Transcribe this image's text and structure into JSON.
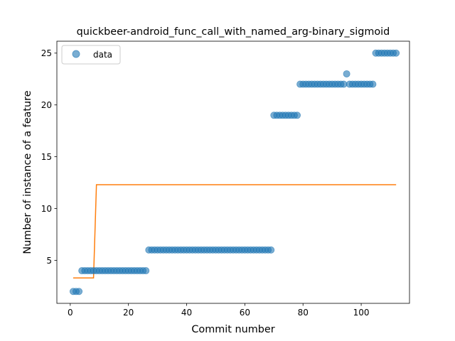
{
  "chart_data": {
    "type": "scatter",
    "title": "quickbeer-android_func_call_with_named_arg-binary_sigmoid",
    "xlabel": "Commit number",
    "ylabel": "Number of instance of a feature",
    "xlim": [
      -4.6,
      116.6
    ],
    "ylim": [
      0.85,
      26.15
    ],
    "xticks": [
      0,
      20,
      40,
      60,
      80,
      100
    ],
    "yticks": [
      5,
      10,
      15,
      20,
      25
    ],
    "grid": false,
    "legend": {
      "position": "top-left",
      "entries": [
        "data"
      ]
    },
    "colors": {
      "data": "#1f77b4",
      "fit": "#ff7f0e"
    },
    "series": [
      {
        "name": "data",
        "kind": "scatter",
        "points": [
          [
            1,
            2
          ],
          [
            2,
            2
          ],
          [
            3,
            2
          ],
          [
            4,
            4
          ],
          [
            5,
            4
          ],
          [
            6,
            4
          ],
          [
            7,
            4
          ],
          [
            8,
            4
          ],
          [
            9,
            4
          ],
          [
            10,
            4
          ],
          [
            11,
            4
          ],
          [
            12,
            4
          ],
          [
            13,
            4
          ],
          [
            14,
            4
          ],
          [
            15,
            4
          ],
          [
            16,
            4
          ],
          [
            17,
            4
          ],
          [
            18,
            4
          ],
          [
            19,
            4
          ],
          [
            20,
            4
          ],
          [
            21,
            4
          ],
          [
            22,
            4
          ],
          [
            23,
            4
          ],
          [
            24,
            4
          ],
          [
            25,
            4
          ],
          [
            26,
            4
          ],
          [
            27,
            6
          ],
          [
            28,
            6
          ],
          [
            29,
            6
          ],
          [
            30,
            6
          ],
          [
            31,
            6
          ],
          [
            32,
            6
          ],
          [
            33,
            6
          ],
          [
            34,
            6
          ],
          [
            35,
            6
          ],
          [
            36,
            6
          ],
          [
            37,
            6
          ],
          [
            38,
            6
          ],
          [
            39,
            6
          ],
          [
            40,
            6
          ],
          [
            41,
            6
          ],
          [
            42,
            6
          ],
          [
            43,
            6
          ],
          [
            44,
            6
          ],
          [
            45,
            6
          ],
          [
            46,
            6
          ],
          [
            47,
            6
          ],
          [
            48,
            6
          ],
          [
            49,
            6
          ],
          [
            50,
            6
          ],
          [
            51,
            6
          ],
          [
            52,
            6
          ],
          [
            53,
            6
          ],
          [
            54,
            6
          ],
          [
            55,
            6
          ],
          [
            56,
            6
          ],
          [
            57,
            6
          ],
          [
            58,
            6
          ],
          [
            59,
            6
          ],
          [
            60,
            6
          ],
          [
            61,
            6
          ],
          [
            62,
            6
          ],
          [
            63,
            6
          ],
          [
            64,
            6
          ],
          [
            65,
            6
          ],
          [
            66,
            6
          ],
          [
            67,
            6
          ],
          [
            68,
            6
          ],
          [
            69,
            6
          ],
          [
            70,
            19
          ],
          [
            71,
            19
          ],
          [
            72,
            19
          ],
          [
            73,
            19
          ],
          [
            74,
            19
          ],
          [
            75,
            19
          ],
          [
            76,
            19
          ],
          [
            77,
            19
          ],
          [
            78,
            19
          ],
          [
            79,
            22
          ],
          [
            80,
            22
          ],
          [
            81,
            22
          ],
          [
            82,
            22
          ],
          [
            83,
            22
          ],
          [
            84,
            22
          ],
          [
            85,
            22
          ],
          [
            86,
            22
          ],
          [
            87,
            22
          ],
          [
            88,
            22
          ],
          [
            89,
            22
          ],
          [
            90,
            22
          ],
          [
            91,
            22
          ],
          [
            92,
            22
          ],
          [
            93,
            22
          ],
          [
            94,
            22
          ],
          [
            95,
            23
          ],
          [
            96,
            22
          ],
          [
            97,
            22
          ],
          [
            98,
            22
          ],
          [
            99,
            22
          ],
          [
            100,
            22
          ],
          [
            101,
            22
          ],
          [
            102,
            22
          ],
          [
            103,
            22
          ],
          [
            104,
            22
          ],
          [
            105,
            25
          ],
          [
            106,
            25
          ],
          [
            107,
            25
          ],
          [
            108,
            25
          ],
          [
            109,
            25
          ],
          [
            110,
            25
          ],
          [
            111,
            25
          ],
          [
            112,
            25
          ]
        ]
      },
      {
        "kind": "line",
        "points": [
          [
            1,
            3.3
          ],
          [
            8,
            3.3
          ],
          [
            9,
            12.3
          ],
          [
            112,
            12.3
          ]
        ]
      }
    ]
  }
}
